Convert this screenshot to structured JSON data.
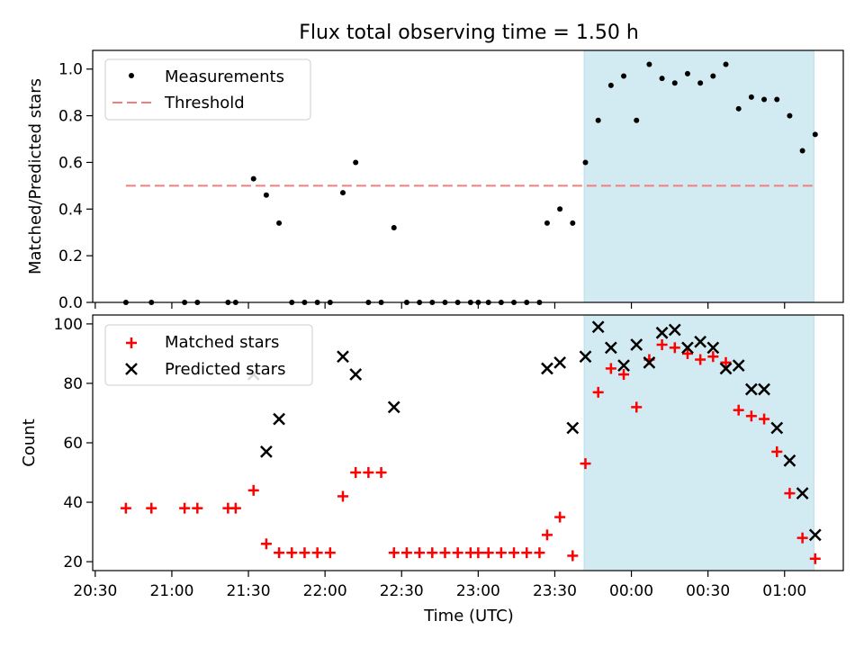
{
  "figure": {
    "title": "Flux total observing time = 1.50 h",
    "xlabel": "Time (UTC)",
    "xticks": [
      {
        "t": 0,
        "label": "20:30"
      },
      {
        "t": 30,
        "label": "21:00"
      },
      {
        "t": 60,
        "label": "21:30"
      },
      {
        "t": 90,
        "label": "22:00"
      },
      {
        "t": 120,
        "label": "22:30"
      },
      {
        "t": 150,
        "label": "23:00"
      },
      {
        "t": 180,
        "label": "23:30"
      },
      {
        "t": 210,
        "label": "00:00"
      },
      {
        "t": 240,
        "label": "00:30"
      },
      {
        "t": 270,
        "label": "01:00"
      }
    ],
    "xlim": [
      -1,
      293
    ],
    "shade": {
      "from": 191.5,
      "to": 281.5,
      "color": "#add8e6"
    },
    "colors": {
      "measurements": "#000000",
      "threshold": "#f08080",
      "matched": "#ff0000",
      "predicted": "#000000"
    }
  },
  "chart_data": [
    {
      "type": "scatter",
      "title": "Flux total observing time = 1.50 h",
      "ylabel": "Matched/Predicted stars",
      "ylim": [
        0,
        1.08
      ],
      "yticks": [
        0.0,
        0.2,
        0.4,
        0.6,
        0.8,
        1.0
      ],
      "legend_position": "top-left",
      "series": [
        {
          "name": "Measurements",
          "kind": "points",
          "x": [
            12,
            22,
            35,
            40,
            52,
            55,
            62,
            67,
            72,
            77,
            82,
            87,
            92,
            97,
            102,
            107,
            112,
            117,
            122,
            127,
            132,
            137,
            142,
            147,
            150,
            154,
            159,
            164,
            169,
            174,
            177,
            182,
            187,
            192,
            197,
            202,
            207,
            212,
            217,
            222,
            227,
            232,
            237,
            242,
            247,
            252,
            257,
            262,
            267,
            272,
            277,
            282
          ],
          "y": [
            0,
            0,
            0,
            0,
            0,
            0,
            0.53,
            0.46,
            0.34,
            0,
            0,
            0,
            0,
            0.47,
            0.6,
            0,
            0,
            0.32,
            0,
            0,
            0,
            0,
            0,
            0,
            0,
            0,
            0,
            0,
            0,
            0,
            0.34,
            0.4,
            0.34,
            0.6,
            0.78,
            0.93,
            0.97,
            0.78,
            1.02,
            0.96,
            0.94,
            0.98,
            0.94,
            0.97,
            1.02,
            0.83,
            0.88,
            0.87,
            0.87,
            0.8,
            0.65,
            0.72
          ]
        },
        {
          "name": "Threshold",
          "kind": "dashed-line",
          "x": [
            12,
            282
          ],
          "y": [
            0.5,
            0.5
          ]
        }
      ]
    },
    {
      "type": "scatter",
      "xlabel": "Time (UTC)",
      "ylabel": "Count",
      "ylim": [
        17,
        103
      ],
      "yticks": [
        20,
        40,
        60,
        80,
        100
      ],
      "legend_position": "top-left",
      "series": [
        {
          "name": "Matched stars",
          "marker": "plus",
          "x": [
            12,
            22,
            35,
            40,
            52,
            55,
            62,
            67,
            72,
            77,
            82,
            87,
            92,
            97,
            102,
            107,
            112,
            117,
            122,
            127,
            132,
            137,
            142,
            147,
            150,
            154,
            159,
            164,
            169,
            174,
            177,
            182,
            187,
            192,
            197,
            202,
            207,
            212,
            217,
            222,
            227,
            232,
            237,
            242,
            247,
            252,
            257,
            262,
            267,
            272,
            277,
            282
          ],
          "y": [
            38,
            38,
            38,
            38,
            38,
            38,
            44,
            26,
            23,
            23,
            23,
            23,
            23,
            42,
            50,
            50,
            50,
            23,
            23,
            23,
            23,
            23,
            23,
            23,
            23,
            23,
            23,
            23,
            23,
            23,
            29,
            35,
            22,
            53,
            77,
            85,
            83,
            72,
            88,
            93,
            92,
            90,
            88,
            89,
            87,
            71,
            69,
            68,
            57,
            43,
            28,
            21
          ]
        },
        {
          "name": "Predicted stars",
          "marker": "x",
          "x": [
            62,
            67,
            72,
            97,
            102,
            117,
            177,
            182,
            187,
            192,
            197,
            202,
            207,
            212,
            217,
            222,
            227,
            232,
            237,
            242,
            247,
            252,
            257,
            262,
            267,
            272,
            277,
            282
          ],
          "y": [
            83,
            57,
            68,
            89,
            83,
            72,
            85,
            87,
            65,
            89,
            99,
            92,
            86,
            93,
            87,
            97,
            98,
            92,
            94,
            92,
            85,
            86,
            78,
            78,
            65,
            54,
            43,
            29
          ]
        }
      ]
    }
  ]
}
